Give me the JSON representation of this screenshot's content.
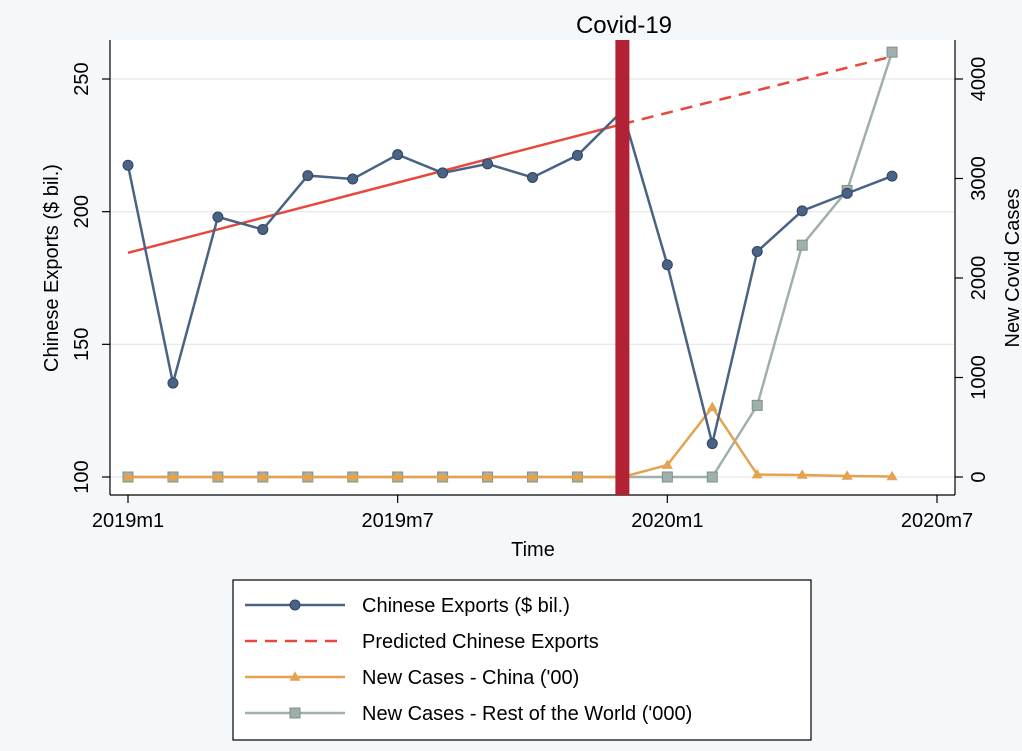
{
  "chart_data": {
    "type": "line",
    "title": "",
    "annotation": "Covid-19",
    "xlabel": "Time",
    "ylabel_left": "Chinese Exports ($ bil.)",
    "ylabel_right": "New Covid Cases",
    "x_ticks": [
      {
        "index": 0,
        "label": "2019m1"
      },
      {
        "index": 6,
        "label": "2019m7"
      },
      {
        "index": 12,
        "label": "2020m1"
      },
      {
        "index": 18,
        "label": "2020m7"
      }
    ],
    "xlim": [
      0,
      18
    ],
    "ylim_left": [
      100,
      262
    ],
    "yticks_left": [
      100,
      150,
      200,
      250
    ],
    "ylim_right": [
      0,
      4400
    ],
    "yticks_right": [
      0,
      1000,
      2000,
      3000,
      4000
    ],
    "covid_marker_index": 11,
    "grid": true,
    "legend_position": "bottom",
    "series": [
      {
        "name": "Chinese Exports ($ bil.)",
        "axis": "left",
        "color": "#4a6384",
        "marker": "circle",
        "style": "solid",
        "x": [
          0,
          1,
          2,
          3,
          4,
          5,
          6,
          7,
          8,
          9,
          10,
          11,
          12,
          13,
          14,
          15,
          16,
          17
        ],
        "values": [
          217.5,
          135.4,
          198.0,
          193.3,
          213.6,
          212.3,
          221.5,
          214.6,
          218.0,
          212.9,
          221.2,
          238.0,
          180.0,
          112.6,
          185.0,
          200.3,
          206.9,
          213.4
        ]
      },
      {
        "name": "Predicted Chinese Exports",
        "axis": "left",
        "color": "#e8483c",
        "marker": "none",
        "style": "split",
        "solid_until_index": 11,
        "x": [
          0,
          11,
          17
        ],
        "values": [
          184.5,
          233.0,
          258.5
        ]
      },
      {
        "name": "New Cases - China ('00)",
        "axis": "right",
        "color": "#e5a24f",
        "marker": "triangle",
        "style": "solid",
        "x": [
          0,
          1,
          2,
          3,
          4,
          5,
          6,
          7,
          8,
          9,
          10,
          11,
          12,
          13,
          14,
          15,
          16,
          17
        ],
        "values": [
          0,
          0,
          0,
          0,
          0,
          0,
          0,
          0,
          0,
          0,
          0,
          0,
          120,
          700,
          25,
          20,
          10,
          5
        ]
      },
      {
        "name": "New Cases - Rest of the World ('000)",
        "axis": "right",
        "color": "#9fb0ac",
        "marker": "square",
        "style": "solid",
        "x": [
          0,
          1,
          2,
          3,
          4,
          5,
          6,
          7,
          8,
          9,
          10,
          11,
          12,
          13,
          14,
          15,
          16,
          17
        ],
        "values": [
          0,
          0,
          0,
          0,
          0,
          0,
          0,
          0,
          0,
          0,
          0,
          0,
          0,
          0,
          720,
          2330,
          2880,
          4270
        ]
      }
    ]
  }
}
